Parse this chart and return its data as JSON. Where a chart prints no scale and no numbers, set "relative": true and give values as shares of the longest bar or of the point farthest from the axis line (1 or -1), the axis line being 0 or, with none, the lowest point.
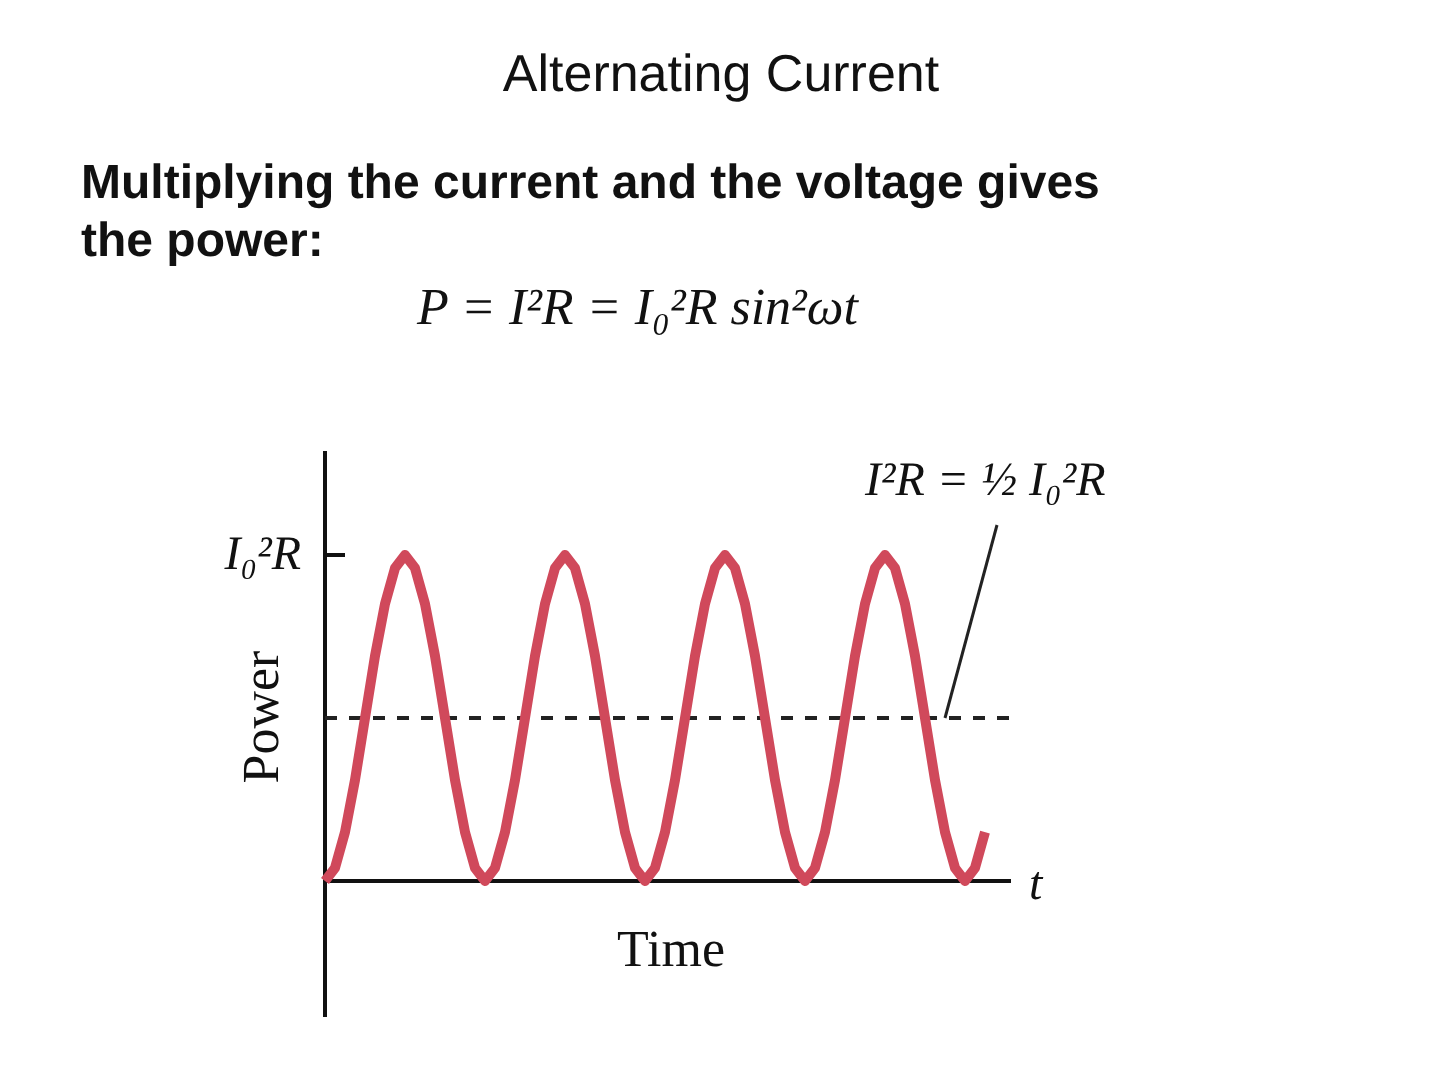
{
  "chart_data": {
    "type": "line",
    "relative": true,
    "title": "Alternating Current",
    "subtitle": "Multiplying the current and the voltage gives the power:",
    "xlabel": "Time",
    "ylabel": "Power",
    "annotations": [
      "P = I²R = I₀²R sin²ωt",
      "I₀²R",
      "t"
    ],
    "ref_lines": [
      {
        "axis": "y",
        "value": 0.5,
        "label": "I²R = ½ I₀²R",
        "line_style": "dashed",
        "color": "#222222"
      }
    ],
    "grid": false,
    "legend": false,
    "marker": "none",
    "line_style": "solid",
    "categories": [
      null,
      null,
      null,
      null,
      null,
      null,
      null,
      null,
      null,
      null,
      null,
      null,
      null,
      null,
      null,
      null,
      null,
      null,
      null,
      null,
      null,
      null,
      null,
      null,
      null,
      null,
      null,
      null,
      null,
      null,
      null,
      null,
      null,
      null,
      null,
      null,
      null,
      null,
      null,
      null,
      null,
      null,
      null,
      null,
      null,
      null,
      null,
      null,
      null,
      null,
      null,
      null,
      null,
      null,
      null,
      null,
      null,
      null,
      null,
      null,
      null,
      null,
      null,
      null,
      null,
      null,
      null
    ],
    "series": [
      {
        "color": "#d0495b",
        "values": [
          0,
          0.04,
          0.15,
          0.31,
          0.5,
          0.69,
          0.85,
          0.96,
          1,
          0.96,
          0.85,
          0.69,
          0.5,
          0.31,
          0.15,
          0.04,
          0,
          0.04,
          0.15,
          0.31,
          0.5,
          0.69,
          0.85,
          0.96,
          1,
          0.96,
          0.85,
          0.69,
          0.5,
          0.31,
          0.15,
          0.04,
          0,
          0.04,
          0.15,
          0.31,
          0.5,
          0.69,
          0.85,
          0.96,
          1,
          0.96,
          0.85,
          0.69,
          0.5,
          0.31,
          0.15,
          0.04,
          0,
          0.04,
          0.15,
          0.31,
          0.5,
          0.69,
          0.85,
          0.96,
          1,
          0.96,
          0.85,
          0.69,
          0.5,
          0.31,
          0.15,
          0.04,
          0,
          0.04,
          0.15
        ]
      }
    ]
  }
}
